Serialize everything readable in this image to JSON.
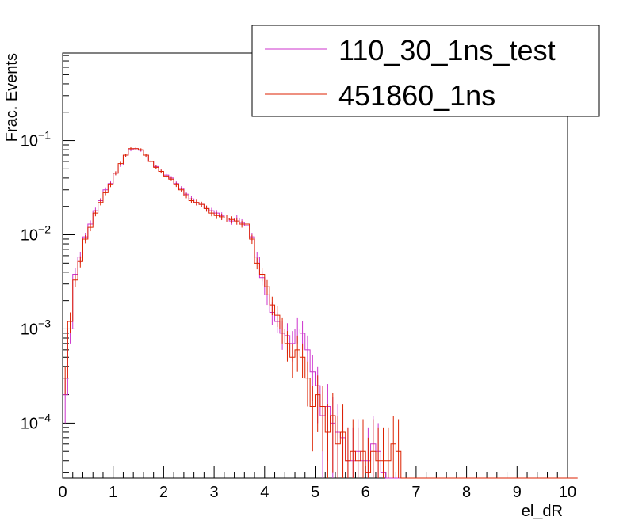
{
  "chart_data": {
    "type": "histogram",
    "xlabel": "el_dR",
    "ylabel": "Frac. Events",
    "xlim": [
      0,
      10
    ],
    "ylim": [
      2.6e-05,
      0.85
    ],
    "log_y": true,
    "x_ticks": [
      "0",
      "1",
      "2",
      "3",
      "4",
      "5",
      "6",
      "7",
      "8",
      "9",
      "10"
    ],
    "y_ticks": [
      {
        "value": 0.0001,
        "base": "10",
        "exp": "−4"
      },
      {
        "value": 0.001,
        "base": "10",
        "exp": "−3"
      },
      {
        "value": 0.01,
        "base": "10",
        "exp": "−2"
      },
      {
        "value": 0.1,
        "base": "10",
        "exp": "−1"
      }
    ],
    "legend_position": "top-right",
    "bin_width": 0.1,
    "series": [
      {
        "name": "110_30_1ns_test",
        "color": "#cc33cc",
        "values": [
          0.0002,
          0.001,
          0.0038,
          0.0058,
          0.0095,
          0.013,
          0.018,
          0.023,
          0.03,
          0.035,
          0.045,
          0.055,
          0.07,
          0.08,
          0.082,
          0.079,
          0.07,
          0.06,
          0.053,
          0.047,
          0.043,
          0.04,
          0.035,
          0.031,
          0.027,
          0.024,
          0.022,
          0.021,
          0.019,
          0.018,
          0.017,
          0.016,
          0.015,
          0.014,
          0.015,
          0.0135,
          0.0125,
          0.0095,
          0.0058,
          0.0035,
          0.0023,
          0.0015,
          0.0012,
          0.0009,
          0.00085,
          0.0007,
          0.001,
          0.0009,
          0.0006,
          0.00035,
          0.00025,
          0.00012,
          0.00015,
          0.0001,
          8e-05,
          7e-05,
          4e-05,
          4e-05,
          5e-05,
          4e-05,
          4e-05,
          6e-05,
          5e-05,
          3e-05,
          0,
          0,
          0,
          0,
          0,
          0,
          0,
          0,
          0,
          0,
          0,
          0,
          0,
          0,
          0,
          0,
          0,
          0,
          0,
          0,
          0,
          0,
          0,
          0,
          0,
          0,
          0,
          0,
          0,
          0,
          0,
          0,
          0,
          0,
          0,
          0
        ],
        "errors": [
          0.0001,
          0.0003,
          0.0006,
          0.0008,
          0.001,
          0.0012,
          0.0014,
          0.0015,
          0.0018,
          0.002,
          0.0022,
          0.0024,
          0.0027,
          0.003,
          0.003,
          0.003,
          0.0028,
          0.0026,
          0.0024,
          0.0022,
          0.0021,
          0.002,
          0.0019,
          0.0018,
          0.0017,
          0.0016,
          0.0015,
          0.0014,
          0.0014,
          0.0013,
          0.0013,
          0.0013,
          0.0012,
          0.0012,
          0.0012,
          0.0011,
          0.0011,
          0.001,
          0.0008,
          0.0006,
          0.0005,
          0.0004,
          0.0003,
          0.0003,
          0.0003,
          0.00025,
          0.0003,
          0.0003,
          0.00025,
          0.00018,
          0.00015,
          0.0001,
          0.00011,
          9e-05,
          8e-05,
          7e-05,
          5e-05,
          5e-05,
          6e-05,
          5e-05,
          5e-05,
          6e-05,
          5e-05,
          4e-05,
          0,
          0,
          0,
          0,
          0,
          0,
          0,
          0,
          0,
          0,
          0,
          0,
          0,
          0,
          0,
          0,
          0,
          0,
          0,
          0,
          0,
          0,
          0,
          0,
          0,
          0,
          0,
          0,
          0,
          0,
          0,
          0,
          0,
          0,
          0,
          0
        ]
      },
      {
        "name": "451860_1ns",
        "color": "#dd2200",
        "values": [
          0.0003,
          0.0012,
          0.0033,
          0.0052,
          0.009,
          0.012,
          0.017,
          0.022,
          0.028,
          0.034,
          0.045,
          0.057,
          0.07,
          0.082,
          0.082,
          0.08,
          0.07,
          0.06,
          0.052,
          0.047,
          0.042,
          0.039,
          0.034,
          0.03,
          0.026,
          0.023,
          0.022,
          0.021,
          0.019,
          0.017,
          0.016,
          0.0155,
          0.015,
          0.0145,
          0.014,
          0.013,
          0.013,
          0.009,
          0.005,
          0.0038,
          0.0028,
          0.0018,
          0.0014,
          0.001,
          0.0007,
          0.0005,
          0.0006,
          0.0005,
          0.0003,
          0.00015,
          0.0002,
          0.00015,
          8e-05,
          0.00012,
          6e-05,
          8e-05,
          4e-05,
          5e-05,
          4e-05,
          5e-05,
          3e-05,
          5e-05,
          4e-05,
          4e-05,
          4e-05,
          6e-05,
          5e-05,
          0,
          0,
          0,
          0,
          0,
          0,
          0,
          0,
          0,
          0,
          0,
          0,
          0,
          0,
          0,
          0,
          0,
          0,
          0,
          0,
          0,
          0,
          0,
          0,
          0,
          0,
          0,
          0,
          0,
          0,
          0,
          0,
          0,
          0,
          0
        ],
        "errors": [
          0.0001,
          0.0003,
          0.0005,
          0.0007,
          0.0009,
          0.0011,
          0.0013,
          0.0015,
          0.0017,
          0.0019,
          0.0021,
          0.0024,
          0.0026,
          0.0029,
          0.0029,
          0.0028,
          0.0027,
          0.0025,
          0.0023,
          0.0022,
          0.002,
          0.0019,
          0.0018,
          0.0017,
          0.0016,
          0.0015,
          0.0015,
          0.0014,
          0.0014,
          0.0013,
          0.0013,
          0.0012,
          0.0012,
          0.0012,
          0.0012,
          0.0011,
          0.0011,
          0.001,
          0.0007,
          0.0006,
          0.0005,
          0.0004,
          0.00035,
          0.0003,
          0.00025,
          0.0002,
          0.00025,
          0.0002,
          0.00015,
          0.0001,
          0.00012,
          0.0001,
          8e-05,
          9e-05,
          6e-05,
          8e-05,
          5e-05,
          6e-05,
          5e-05,
          6e-05,
          4e-05,
          6e-05,
          5e-05,
          5e-05,
          5e-05,
          6e-05,
          6e-05,
          0,
          0,
          0,
          0,
          0,
          0,
          0,
          0,
          0,
          0,
          0,
          0,
          0,
          0,
          0,
          0,
          0,
          0,
          0,
          0,
          0,
          0,
          0,
          0,
          0,
          0,
          0,
          0,
          0,
          0,
          0,
          0,
          0,
          0,
          0
        ]
      }
    ]
  }
}
